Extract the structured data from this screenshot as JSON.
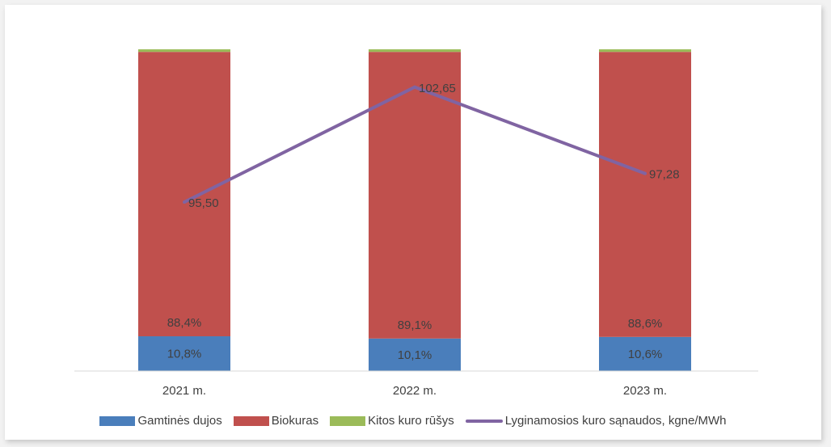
{
  "chart_data": {
    "type": "bar",
    "stacked": true,
    "categories": [
      "2021 m.",
      "2022 m.",
      "2023 m."
    ],
    "ylim": [
      0,
      100
    ],
    "grid": false,
    "legend_position": "bottom",
    "series": [
      {
        "name": "Gamtinės dujos",
        "type": "bar",
        "color": "#4a7ebb",
        "values": [
          10.8,
          10.1,
          10.6
        ],
        "labels": [
          "10,8%",
          "10,1%",
          "10,6%"
        ]
      },
      {
        "name": "Biokuras",
        "type": "bar",
        "color": "#c0504d",
        "values": [
          88.4,
          89.1,
          88.6
        ],
        "labels": [
          "88,4%",
          "89,1%",
          "88,6%"
        ]
      },
      {
        "name": "Kitos kuro rūšys",
        "type": "bar",
        "color": "#9bbb59",
        "values": [
          0.8,
          0.8,
          0.8
        ]
      },
      {
        "name": "Lyginamosios kuro sąnaudos, kgne/MWh",
        "type": "line",
        "color": "#8064a2",
        "values": [
          95.5,
          102.65,
          97.28
        ],
        "labels": [
          "95,50",
          "102,65",
          "97,28"
        ],
        "ylim": [
          85,
          105
        ]
      }
    ]
  }
}
